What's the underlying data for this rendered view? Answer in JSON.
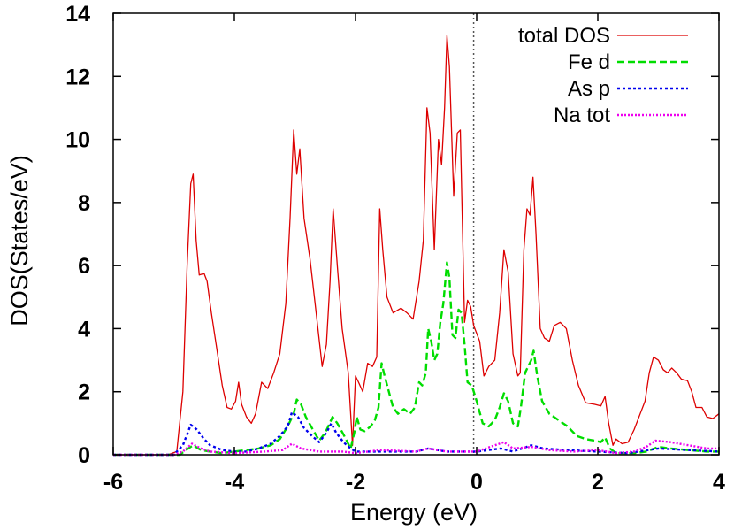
{
  "chart_data": {
    "type": "line",
    "xlabel": "Energy (eV)",
    "ylabel": "DOS(States/eV)",
    "xlim": [
      -6,
      4
    ],
    "ylim": [
      0,
      14
    ],
    "xticks": [
      "-6",
      "-4",
      "-2",
      "0",
      "2",
      "4"
    ],
    "yticks": [
      "0",
      "2",
      "4",
      "6",
      "8",
      "10",
      "12",
      "14"
    ],
    "fermi_line_x": -0.05,
    "legend_position": "top-right",
    "series": [
      {
        "name": "total DOS",
        "color": "#dd0000",
        "dash": "solid",
        "points": [
          [
            -6,
            0
          ],
          [
            -5.1,
            0
          ],
          [
            -4.95,
            0.1
          ],
          [
            -4.85,
            2
          ],
          [
            -4.78,
            6
          ],
          [
            -4.72,
            8.6
          ],
          [
            -4.68,
            8.9
          ],
          [
            -4.63,
            6.8
          ],
          [
            -4.58,
            5.7
          ],
          [
            -4.5,
            5.75
          ],
          [
            -4.45,
            5.5
          ],
          [
            -4.38,
            4.5
          ],
          [
            -4.3,
            3.5
          ],
          [
            -4.2,
            2.2
          ],
          [
            -4.12,
            1.5
          ],
          [
            -4.05,
            1.45
          ],
          [
            -3.98,
            1.7
          ],
          [
            -3.93,
            2.3
          ],
          [
            -3.88,
            1.6
          ],
          [
            -3.8,
            1.2
          ],
          [
            -3.72,
            1.0
          ],
          [
            -3.65,
            1.3
          ],
          [
            -3.55,
            2.3
          ],
          [
            -3.45,
            2.1
          ],
          [
            -3.35,
            2.6
          ],
          [
            -3.25,
            3.2
          ],
          [
            -3.15,
            4.8
          ],
          [
            -3.08,
            7.5
          ],
          [
            -3.02,
            10.3
          ],
          [
            -2.97,
            8.9
          ],
          [
            -2.92,
            9.7
          ],
          [
            -2.85,
            7.5
          ],
          [
            -2.75,
            6.2
          ],
          [
            -2.65,
            4.5
          ],
          [
            -2.55,
            2.8
          ],
          [
            -2.48,
            3.5
          ],
          [
            -2.42,
            5.5
          ],
          [
            -2.37,
            7.8
          ],
          [
            -2.3,
            6.0
          ],
          [
            -2.22,
            4.0
          ],
          [
            -2.12,
            2.6
          ],
          [
            -2.05,
            0.3
          ],
          [
            -2.0,
            2.5
          ],
          [
            -1.95,
            2.3
          ],
          [
            -1.88,
            2.0
          ],
          [
            -1.8,
            2.9
          ],
          [
            -1.72,
            2.8
          ],
          [
            -1.65,
            3.1
          ],
          [
            -1.6,
            7.8
          ],
          [
            -1.55,
            6.5
          ],
          [
            -1.48,
            5.0
          ],
          [
            -1.38,
            4.5
          ],
          [
            -1.25,
            4.65
          ],
          [
            -1.15,
            4.5
          ],
          [
            -1.05,
            4.3
          ],
          [
            -0.95,
            5.5
          ],
          [
            -0.88,
            6.8
          ],
          [
            -0.82,
            11.0
          ],
          [
            -0.77,
            10.2
          ],
          [
            -0.7,
            6.5
          ],
          [
            -0.63,
            10.0
          ],
          [
            -0.58,
            9.2
          ],
          [
            -0.53,
            11.0
          ],
          [
            -0.49,
            13.3
          ],
          [
            -0.45,
            12.3
          ],
          [
            -0.38,
            8.2
          ],
          [
            -0.32,
            10.2
          ],
          [
            -0.27,
            10.3
          ],
          [
            -0.2,
            4.2
          ],
          [
            -0.15,
            4.9
          ],
          [
            -0.1,
            4.7
          ],
          [
            -0.05,
            4.1
          ],
          [
            0.05,
            3.6
          ],
          [
            0.12,
            2.5
          ],
          [
            0.2,
            2.8
          ],
          [
            0.3,
            3.0
          ],
          [
            0.38,
            4.5
          ],
          [
            0.45,
            6.5
          ],
          [
            0.52,
            5.8
          ],
          [
            0.6,
            3.2
          ],
          [
            0.68,
            2.5
          ],
          [
            0.72,
            2.6
          ],
          [
            0.78,
            6.5
          ],
          [
            0.83,
            7.8
          ],
          [
            0.88,
            7.6
          ],
          [
            0.93,
            8.8
          ],
          [
            0.98,
            7.0
          ],
          [
            1.05,
            4.0
          ],
          [
            1.12,
            3.7
          ],
          [
            1.2,
            3.6
          ],
          [
            1.28,
            4.1
          ],
          [
            1.38,
            4.2
          ],
          [
            1.48,
            4.0
          ],
          [
            1.58,
            3.0
          ],
          [
            1.68,
            2.2
          ],
          [
            1.8,
            1.65
          ],
          [
            1.95,
            1.6
          ],
          [
            2.05,
            1.55
          ],
          [
            2.12,
            1.85
          ],
          [
            2.18,
            1.0
          ],
          [
            2.25,
            0.3
          ],
          [
            2.3,
            0.5
          ],
          [
            2.4,
            0.35
          ],
          [
            2.5,
            0.4
          ],
          [
            2.6,
            0.8
          ],
          [
            2.7,
            1.3
          ],
          [
            2.78,
            1.7
          ],
          [
            2.85,
            2.6
          ],
          [
            2.92,
            3.1
          ],
          [
            3.0,
            3.0
          ],
          [
            3.08,
            2.7
          ],
          [
            3.15,
            2.6
          ],
          [
            3.22,
            2.75
          ],
          [
            3.3,
            2.6
          ],
          [
            3.38,
            2.4
          ],
          [
            3.48,
            2.35
          ],
          [
            3.55,
            2.0
          ],
          [
            3.62,
            1.5
          ],
          [
            3.72,
            1.5
          ],
          [
            3.8,
            1.2
          ],
          [
            3.9,
            1.15
          ],
          [
            4.0,
            1.3
          ]
        ]
      },
      {
        "name": "Fe  d",
        "color": "#00dd00",
        "dash": "8,4",
        "points": [
          [
            -6,
            0
          ],
          [
            -4.9,
            0
          ],
          [
            -4.8,
            0.15
          ],
          [
            -4.68,
            0.3
          ],
          [
            -4.55,
            0.15
          ],
          [
            -4.4,
            0.1
          ],
          [
            -4.2,
            0.05
          ],
          [
            -4.0,
            0.1
          ],
          [
            -3.8,
            0.15
          ],
          [
            -3.6,
            0.2
          ],
          [
            -3.4,
            0.3
          ],
          [
            -3.25,
            0.5
          ],
          [
            -3.12,
            0.9
          ],
          [
            -3.02,
            1.3
          ],
          [
            -2.97,
            1.75
          ],
          [
            -2.9,
            1.6
          ],
          [
            -2.82,
            1.2
          ],
          [
            -2.72,
            0.85
          ],
          [
            -2.6,
            0.45
          ],
          [
            -2.5,
            0.7
          ],
          [
            -2.45,
            0.9
          ],
          [
            -2.38,
            1.2
          ],
          [
            -2.3,
            1.0
          ],
          [
            -2.2,
            0.65
          ],
          [
            -2.08,
            0.2
          ],
          [
            -2.02,
            0.7
          ],
          [
            -1.98,
            1.2
          ],
          [
            -1.92,
            0.8
          ],
          [
            -1.85,
            0.75
          ],
          [
            -1.75,
            0.9
          ],
          [
            -1.68,
            1.1
          ],
          [
            -1.62,
            1.5
          ],
          [
            -1.57,
            2.9
          ],
          [
            -1.52,
            2.5
          ],
          [
            -1.45,
            2.0
          ],
          [
            -1.38,
            1.5
          ],
          [
            -1.3,
            1.3
          ],
          [
            -1.2,
            1.45
          ],
          [
            -1.1,
            1.3
          ],
          [
            -1.02,
            1.5
          ],
          [
            -0.95,
            2.3
          ],
          [
            -0.9,
            2.2
          ],
          [
            -0.84,
            2.6
          ],
          [
            -0.8,
            4.0
          ],
          [
            -0.75,
            3.6
          ],
          [
            -0.7,
            3.0
          ],
          [
            -0.65,
            3.2
          ],
          [
            -0.6,
            4.2
          ],
          [
            -0.55,
            4.8
          ],
          [
            -0.49,
            6.1
          ],
          [
            -0.45,
            5.6
          ],
          [
            -0.4,
            3.8
          ],
          [
            -0.35,
            3.7
          ],
          [
            -0.3,
            4.6
          ],
          [
            -0.25,
            4.5
          ],
          [
            -0.2,
            3.5
          ],
          [
            -0.15,
            2.3
          ],
          [
            -0.08,
            2.2
          ],
          [
            0.0,
            1.7
          ],
          [
            0.1,
            1.0
          ],
          [
            0.2,
            0.9
          ],
          [
            0.3,
            1.1
          ],
          [
            0.38,
            1.5
          ],
          [
            0.45,
            1.95
          ],
          [
            0.52,
            1.7
          ],
          [
            0.6,
            1.0
          ],
          [
            0.68,
            0.9
          ],
          [
            0.73,
            1.5
          ],
          [
            0.8,
            2.6
          ],
          [
            0.85,
            2.8
          ],
          [
            0.9,
            3.0
          ],
          [
            0.94,
            3.3
          ],
          [
            1.0,
            2.5
          ],
          [
            1.08,
            1.7
          ],
          [
            1.2,
            1.3
          ],
          [
            1.35,
            1.1
          ],
          [
            1.5,
            0.9
          ],
          [
            1.65,
            0.6
          ],
          [
            1.8,
            0.5
          ],
          [
            1.95,
            0.45
          ],
          [
            2.05,
            0.4
          ],
          [
            2.12,
            0.55
          ],
          [
            2.2,
            0.2
          ],
          [
            2.3,
            0.05
          ],
          [
            2.6,
            0.05
          ],
          [
            2.8,
            0.1
          ],
          [
            3.0,
            0.25
          ],
          [
            3.2,
            0.2
          ],
          [
            3.5,
            0.15
          ],
          [
            3.8,
            0.1
          ],
          [
            4.0,
            0.1
          ]
        ]
      },
      {
        "name": "As  p",
        "color": "#0000ee",
        "dash": "3,3",
        "points": [
          [
            -6,
            0
          ],
          [
            -5.0,
            0
          ],
          [
            -4.85,
            0.3
          ],
          [
            -4.72,
            0.95
          ],
          [
            -4.62,
            0.8
          ],
          [
            -4.5,
            0.5
          ],
          [
            -4.4,
            0.3
          ],
          [
            -4.2,
            0.15
          ],
          [
            -4.0,
            0.1
          ],
          [
            -3.8,
            0.1
          ],
          [
            -3.6,
            0.2
          ],
          [
            -3.4,
            0.35
          ],
          [
            -3.25,
            0.6
          ],
          [
            -3.12,
            0.9
          ],
          [
            -3.05,
            1.35
          ],
          [
            -2.95,
            1.2
          ],
          [
            -2.85,
            0.85
          ],
          [
            -2.72,
            0.6
          ],
          [
            -2.6,
            0.4
          ],
          [
            -2.48,
            0.7
          ],
          [
            -2.4,
            1.0
          ],
          [
            -2.32,
            0.7
          ],
          [
            -2.2,
            0.4
          ],
          [
            -2.08,
            0.2
          ],
          [
            -2.0,
            0.1
          ],
          [
            -1.6,
            0.1
          ],
          [
            -1.0,
            0.1
          ],
          [
            -0.8,
            0.2
          ],
          [
            -0.5,
            0.1
          ],
          [
            0.0,
            0.1
          ],
          [
            0.4,
            0.2
          ],
          [
            0.6,
            0.1
          ],
          [
            0.9,
            0.3
          ],
          [
            1.1,
            0.2
          ],
          [
            1.5,
            0.15
          ],
          [
            2.0,
            0.1
          ],
          [
            2.5,
            0.05
          ],
          [
            3.0,
            0.2
          ],
          [
            3.5,
            0.15
          ],
          [
            4.0,
            0.1
          ]
        ]
      },
      {
        "name": "Na  tot",
        "color": "#ee00ee",
        "dash": "2,2",
        "points": [
          [
            -6,
            0
          ],
          [
            -5.0,
            0
          ],
          [
            -4.85,
            0.1
          ],
          [
            -4.7,
            0.35
          ],
          [
            -4.55,
            0.2
          ],
          [
            -4.4,
            0.1
          ],
          [
            -4.0,
            0.05
          ],
          [
            -3.5,
            0.1
          ],
          [
            -3.2,
            0.15
          ],
          [
            -3.05,
            0.35
          ],
          [
            -2.9,
            0.2
          ],
          [
            -2.6,
            0.1
          ],
          [
            -2.2,
            0.1
          ],
          [
            -2.0,
            0.05
          ],
          [
            -1.6,
            0.15
          ],
          [
            -1.0,
            0.1
          ],
          [
            -0.8,
            0.2
          ],
          [
            -0.5,
            0.1
          ],
          [
            0.0,
            0.1
          ],
          [
            0.45,
            0.4
          ],
          [
            0.6,
            0.2
          ],
          [
            0.9,
            0.25
          ],
          [
            1.2,
            0.15
          ],
          [
            1.6,
            0.1
          ],
          [
            2.0,
            0.15
          ],
          [
            2.3,
            0.05
          ],
          [
            2.6,
            0.1
          ],
          [
            2.8,
            0.25
          ],
          [
            2.95,
            0.45
          ],
          [
            3.2,
            0.4
          ],
          [
            3.5,
            0.3
          ],
          [
            3.8,
            0.2
          ],
          [
            4.0,
            0.2
          ]
        ]
      }
    ]
  }
}
